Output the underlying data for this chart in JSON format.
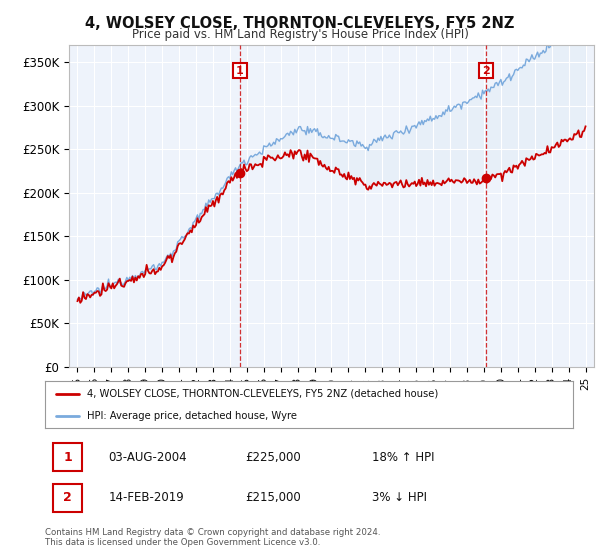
{
  "title": "4, WOLSEY CLOSE, THORNTON-CLEVELEYS, FY5 2NZ",
  "subtitle": "Price paid vs. HM Land Registry's House Price Index (HPI)",
  "red_label": "4, WOLSEY CLOSE, THORNTON-CLEVELEYS, FY5 2NZ (detached house)",
  "blue_label": "HPI: Average price, detached house, Wyre",
  "sale1_date_label": "03-AUG-2004",
  "sale1_price_label": "£225,000",
  "sale1_hpi_label": "18% ↑ HPI",
  "sale2_date_label": "14-FEB-2019",
  "sale2_price_label": "£215,000",
  "sale2_hpi_label": "3% ↓ HPI",
  "sale1_year": 2004.6,
  "sale1_price": 225000,
  "sale2_year": 2019.12,
  "sale2_price": 215000,
  "ylabel_ticks": [
    0,
    50000,
    100000,
    150000,
    200000,
    250000,
    300000,
    350000
  ],
  "ylabel_labels": [
    "£0",
    "£50K",
    "£100K",
    "£150K",
    "£200K",
    "£250K",
    "£300K",
    "£350K"
  ],
  "xmin": 1994.5,
  "xmax": 2025.5,
  "ymin": 0,
  "ymax": 370000,
  "red_color": "#cc0000",
  "blue_color": "#7aaadd",
  "fill_color": "#dce8f5",
  "footer_text": "Contains HM Land Registry data © Crown copyright and database right 2024.\nThis data is licensed under the Open Government Licence v3.0.",
  "background_color": "#ffffff",
  "plot_bg_color": "#eef3fb"
}
